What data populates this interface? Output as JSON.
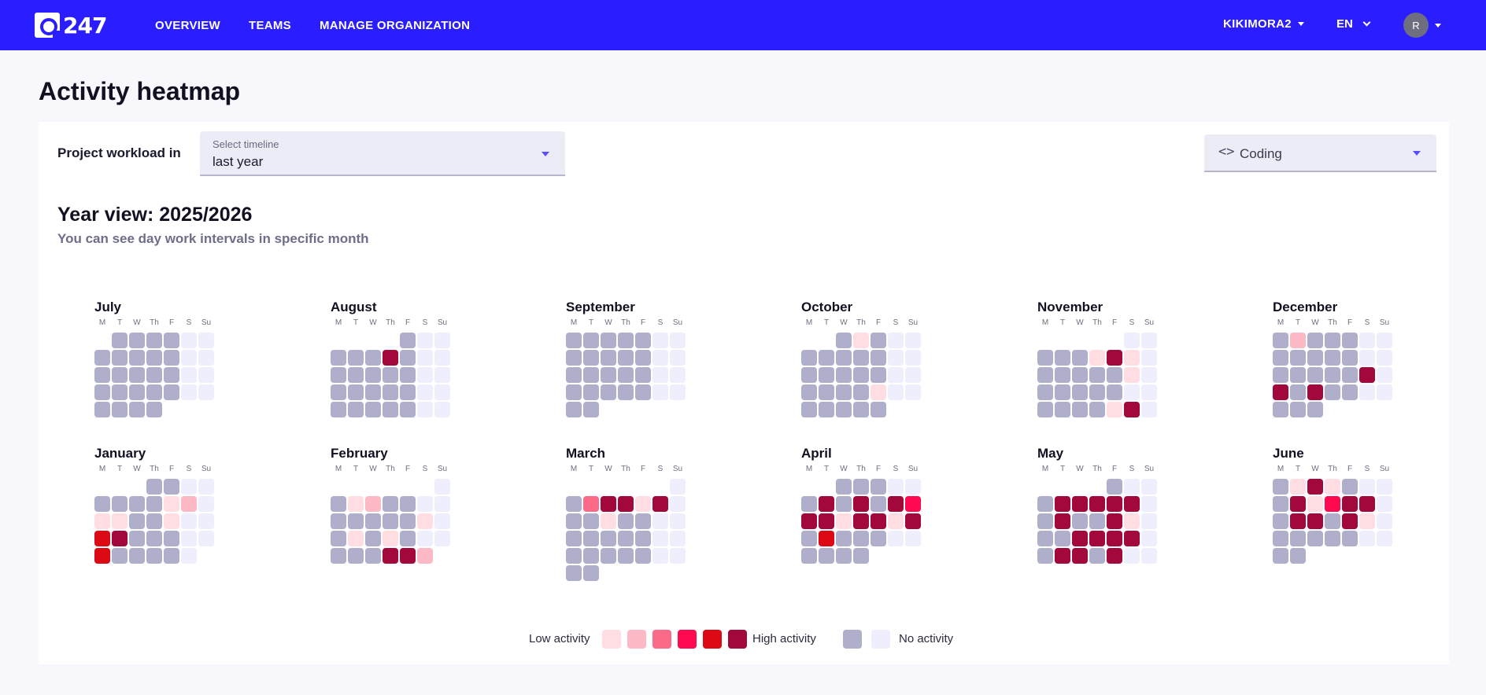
{
  "nav": {
    "logo_text": "247",
    "items": [
      "OVERVIEW",
      "TEAMS",
      "MANAGE ORGANIZATION"
    ],
    "org": "KIKIMORA2",
    "lang": "EN",
    "avatar_initial": "R"
  },
  "page_title": "Activity heatmap",
  "filters": {
    "project_workload_label": "Project workload in",
    "timeline_label": "Select timeline",
    "timeline_value": "last year",
    "activity_type": "Coding",
    "activity_icon": "code-icon"
  },
  "year_view": {
    "title": "Year view: 2025/2026",
    "subtitle": "You can see day work intervals in specific month"
  },
  "dow_labels": [
    "M",
    "T",
    "W",
    "Th",
    "F",
    "S",
    "Su"
  ],
  "colors": {
    "0": "#b0afcb",
    "e": "#eeeefc",
    "1": "#ffdde2",
    "2": "#fdb9c5",
    "3": "#fb6b87",
    "4": "#ff0a50",
    "5": "#db0a14",
    "6": "#a2083c"
  },
  "months": [
    {
      "name": "July",
      "start": 1,
      "days": 31,
      "activity": {}
    },
    {
      "name": "August",
      "start": 4,
      "days": 31,
      "activity": {
        "6": 6
      }
    },
    {
      "name": "September",
      "start": 0,
      "days": 30,
      "activity": {}
    },
    {
      "name": "October",
      "start": 2,
      "days": 31,
      "activity": {
        "1": 1,
        "23": 1
      }
    },
    {
      "name": "November",
      "start": 5,
      "days": 30,
      "activity": {
        "5": 1,
        "6": 6,
        "7": 1,
        "14": 1,
        "27": 1,
        "28": 6
      }
    },
    {
      "name": "December",
      "start": 0,
      "days": 31,
      "activity": {
        "1": 2,
        "19": 6,
        "21": 6,
        "23": 6
      }
    },
    {
      "name": "January",
      "start": 3,
      "days": 31,
      "activity": {
        "8": 1,
        "9": 2,
        "11": 1,
        "12": 1,
        "15": 1,
        "18": 5,
        "19": 6,
        "25": 5
      }
    },
    {
      "name": "February",
      "start": 6,
      "days": 28,
      "activity": {
        "2": 1,
        "3": 2,
        "13": 1,
        "16": 1,
        "18": 1,
        "25": 6,
        "26": 6,
        "27": 2
      }
    },
    {
      "name": "March",
      "start": 6,
      "days": 31,
      "activity": {
        "2": 3,
        "3": 6,
        "4": 6,
        "5": 1,
        "6": 6,
        "10": 1
      }
    },
    {
      "name": "April",
      "start": 2,
      "days": 30,
      "activity": {
        "6": 6,
        "8": 6,
        "10": 6,
        "11": 4,
        "12": 6,
        "13": 6,
        "14": 1,
        "15": 6,
        "16": 6,
        "17": 1,
        "18": 6,
        "20": 5
      }
    },
    {
      "name": "May",
      "start": 4,
      "days": 31,
      "activity": {
        "4": 6,
        "5": 6,
        "6": 6,
        "7": 6,
        "8": 6,
        "11": 6,
        "14": 6,
        "15": 1,
        "19": 6,
        "20": 6,
        "21": 6,
        "22": 6,
        "25": 6,
        "26": 6,
        "28": 6
      }
    },
    {
      "name": "June",
      "start": 0,
      "days": 30,
      "activity": {
        "1": 1,
        "2": 6,
        "3": 1,
        "8": 6,
        "9": 1,
        "10": 4,
        "11": 6,
        "12": 6,
        "15": 6,
        "16": 6,
        "18": 6,
        "19": 1
      }
    }
  ],
  "legend": {
    "low_label": "Low activity",
    "high_label": "High activity",
    "none_label": "No activity"
  }
}
